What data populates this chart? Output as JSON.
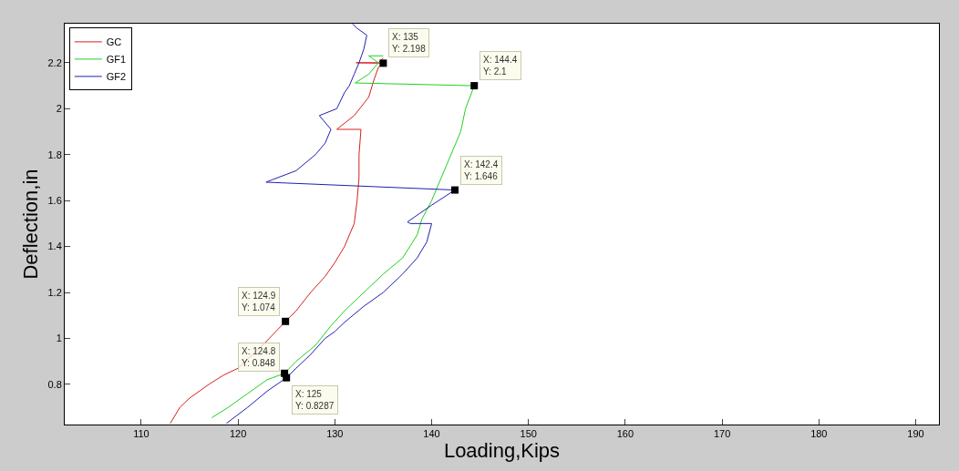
{
  "chart_data": {
    "type": "line",
    "xlabel": "Loading,Kips",
    "ylabel": "Deflection,in",
    "xlim": [
      102.1,
      192.4
    ],
    "ylim": [
      0.625,
      2.37
    ],
    "xticks": [
      110,
      120,
      130,
      140,
      150,
      160,
      170,
      180,
      190
    ],
    "yticks": [
      0.8,
      1,
      1.2,
      1.4,
      1.6,
      1.8,
      2,
      2.2
    ],
    "legend": "top left",
    "marker": "none",
    "line_style": "solid",
    "series": [
      {
        "name": "GC",
        "color": "#d62020",
        "x": [
          113,
          114,
          115,
          117,
          118.5,
          120,
          123,
          124.9,
          126,
          127.5,
          129,
          130,
          131,
          132,
          132.3,
          132.5,
          132.5,
          132.7,
          130.2,
          132,
          133.5,
          134,
          134.5,
          135,
          132.2,
          134.5,
          135
        ],
        "values": [
          0.63,
          0.7,
          0.74,
          0.8,
          0.84,
          0.87,
          0.99,
          1.074,
          1.12,
          1.2,
          1.27,
          1.33,
          1.4,
          1.5,
          1.6,
          1.7,
          1.8,
          1.91,
          1.91,
          1.97,
          2.05,
          2.12,
          2.18,
          2.198,
          2.2,
          2.2,
          2.22
        ]
      },
      {
        "name": "GF1",
        "color": "#20d020",
        "x": [
          117.3,
          119,
          121,
          123,
          124.8,
          126,
          128,
          129.5,
          131,
          133,
          135,
          137,
          138.5,
          139,
          140,
          141,
          142,
          143,
          143.5,
          144.4,
          132.1,
          133.5,
          134.5,
          133.5,
          135
        ],
        "values": [
          0.655,
          0.7,
          0.76,
          0.82,
          0.848,
          0.9,
          0.97,
          1.05,
          1.12,
          1.2,
          1.28,
          1.35,
          1.45,
          1.52,
          1.6,
          1.7,
          1.8,
          1.9,
          2.0,
          2.1,
          2.112,
          2.15,
          2.2,
          2.23,
          2.23
        ]
      },
      {
        "name": "GF2",
        "color": "#2020b0",
        "x": [
          118.8,
          121,
          123,
          125,
          126,
          127.5,
          129,
          130,
          131,
          133,
          135,
          137,
          138.5,
          139.5,
          140,
          137.8,
          137.5,
          140,
          142.4,
          122.9,
          123.5,
          126,
          128,
          129,
          129.6,
          128.4,
          130.2,
          131,
          131.5,
          132,
          132.5,
          133,
          133.3,
          132.3,
          131.8
        ],
        "values": [
          0.63,
          0.7,
          0.77,
          0.8287,
          0.87,
          0.93,
          1.0,
          1.03,
          1.07,
          1.14,
          1.2,
          1.28,
          1.35,
          1.42,
          1.5,
          1.5,
          1.507,
          1.58,
          1.646,
          1.68,
          1.69,
          1.73,
          1.8,
          1.85,
          1.91,
          1.97,
          2.0,
          2.07,
          2.1,
          2.15,
          2.2,
          2.26,
          2.32,
          2.35,
          2.37
        ]
      }
    ],
    "annotations": [
      {
        "text": "X: 135\nY: 2.198",
        "x": 135,
        "y": 2.198
      },
      {
        "text": "X: 144.4\nY: 2.1",
        "x": 144.4,
        "y": 2.1
      },
      {
        "text": "X: 142.4\nY: 1.646",
        "x": 142.4,
        "y": 1.646
      },
      {
        "text": "X: 124.9\nY: 1.074",
        "x": 124.9,
        "y": 1.074
      },
      {
        "text": "X: 124.8\nY: 0.848",
        "x": 124.8,
        "y": 0.848
      },
      {
        "text": "X: 125\nY: 0.8287",
        "x": 125,
        "y": 0.8287
      }
    ]
  }
}
